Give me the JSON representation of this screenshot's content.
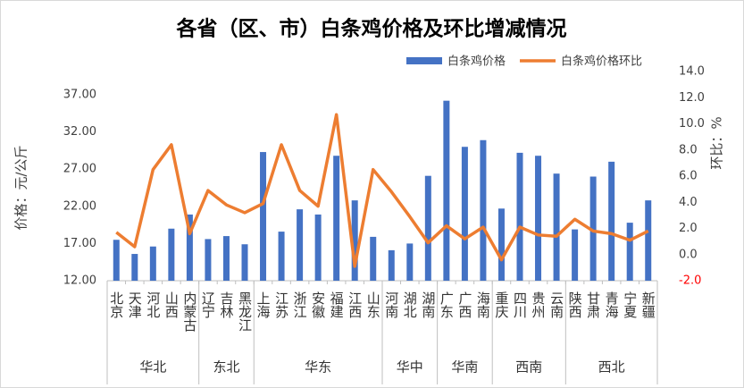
{
  "chart_data": {
    "type": "bar-line",
    "title": "各省（区、市）白条鸡价格及环比增减情况",
    "y_label": "价格：元/公斤",
    "y2_label": "环比：%",
    "groups": [
      {
        "name": "华北",
        "categories": [
          "北京",
          "天津",
          "河北",
          "山西",
          "内蒙古"
        ]
      },
      {
        "name": "东北",
        "categories": [
          "辽宁",
          "吉林",
          "黑龙江"
        ]
      },
      {
        "name": "华东",
        "categories": [
          "上海",
          "江苏",
          "浙江",
          "安徽",
          "福建",
          "江西",
          "山东"
        ]
      },
      {
        "name": "华中",
        "categories": [
          "河南",
          "湖北",
          "湖南"
        ]
      },
      {
        "name": "华南",
        "categories": [
          "广东",
          "广西",
          "海南"
        ]
      },
      {
        "name": "西南",
        "categories": [
          "重庆",
          "四川",
          "贵州",
          "云南"
        ]
      },
      {
        "name": "西北",
        "categories": [
          "陕西",
          "甘肃",
          "青海",
          "宁夏",
          "新疆"
        ]
      }
    ],
    "series": [
      {
        "name": "白条鸡价格",
        "type": "bar",
        "color": "#4472c4",
        "axis": "y",
        "values": [
          17.5,
          15.6,
          16.6,
          19.0,
          20.9,
          17.6,
          18.0,
          16.9,
          29.3,
          18.6,
          21.6,
          20.9,
          28.8,
          22.8,
          17.9,
          16.1,
          17.0,
          26.1,
          36.2,
          30.0,
          30.9,
          21.7,
          29.2,
          28.8,
          26.4,
          18.9,
          26.0,
          28.0,
          19.8,
          22.8
        ]
      },
      {
        "name": "白条鸡价格环比",
        "type": "line",
        "color": "#ed7d31",
        "axis": "y2",
        "values": [
          1.7,
          0.6,
          6.5,
          8.4,
          1.6,
          4.9,
          3.8,
          3.2,
          3.9,
          8.4,
          4.9,
          3.7,
          10.7,
          -0.9,
          6.5,
          4.8,
          2.9,
          0.9,
          2.2,
          1.2,
          2.1,
          -0.4,
          2.1,
          1.5,
          1.4,
          2.7,
          1.8,
          1.6,
          1.1,
          1.8
        ]
      }
    ],
    "ylim": [
      12,
      37
    ],
    "yticks": [
      {
        "value": 12,
        "label": "12.00"
      },
      {
        "value": 17,
        "label": "17.00"
      },
      {
        "value": 22,
        "label": "22.00"
      },
      {
        "value": 27,
        "label": "27.00"
      },
      {
        "value": 32,
        "label": "32.00"
      },
      {
        "value": 37,
        "label": "37.00"
      }
    ],
    "y2lim": [
      -2,
      14
    ],
    "y2ticks": [
      {
        "value": -2,
        "label": "-2.0"
      },
      {
        "value": 0,
        "label": "0.0"
      },
      {
        "value": 2,
        "label": "2.0"
      },
      {
        "value": 4,
        "label": "4.0"
      },
      {
        "value": 6,
        "label": "6.0"
      },
      {
        "value": 8,
        "label": "8.0"
      },
      {
        "value": 10,
        "label": "10.0"
      },
      {
        "value": 12,
        "label": "12.0"
      },
      {
        "value": 14,
        "label": "14.0"
      }
    ],
    "negative_tick_color": "#ff0000",
    "grid": false,
    "legend": "top-right"
  }
}
